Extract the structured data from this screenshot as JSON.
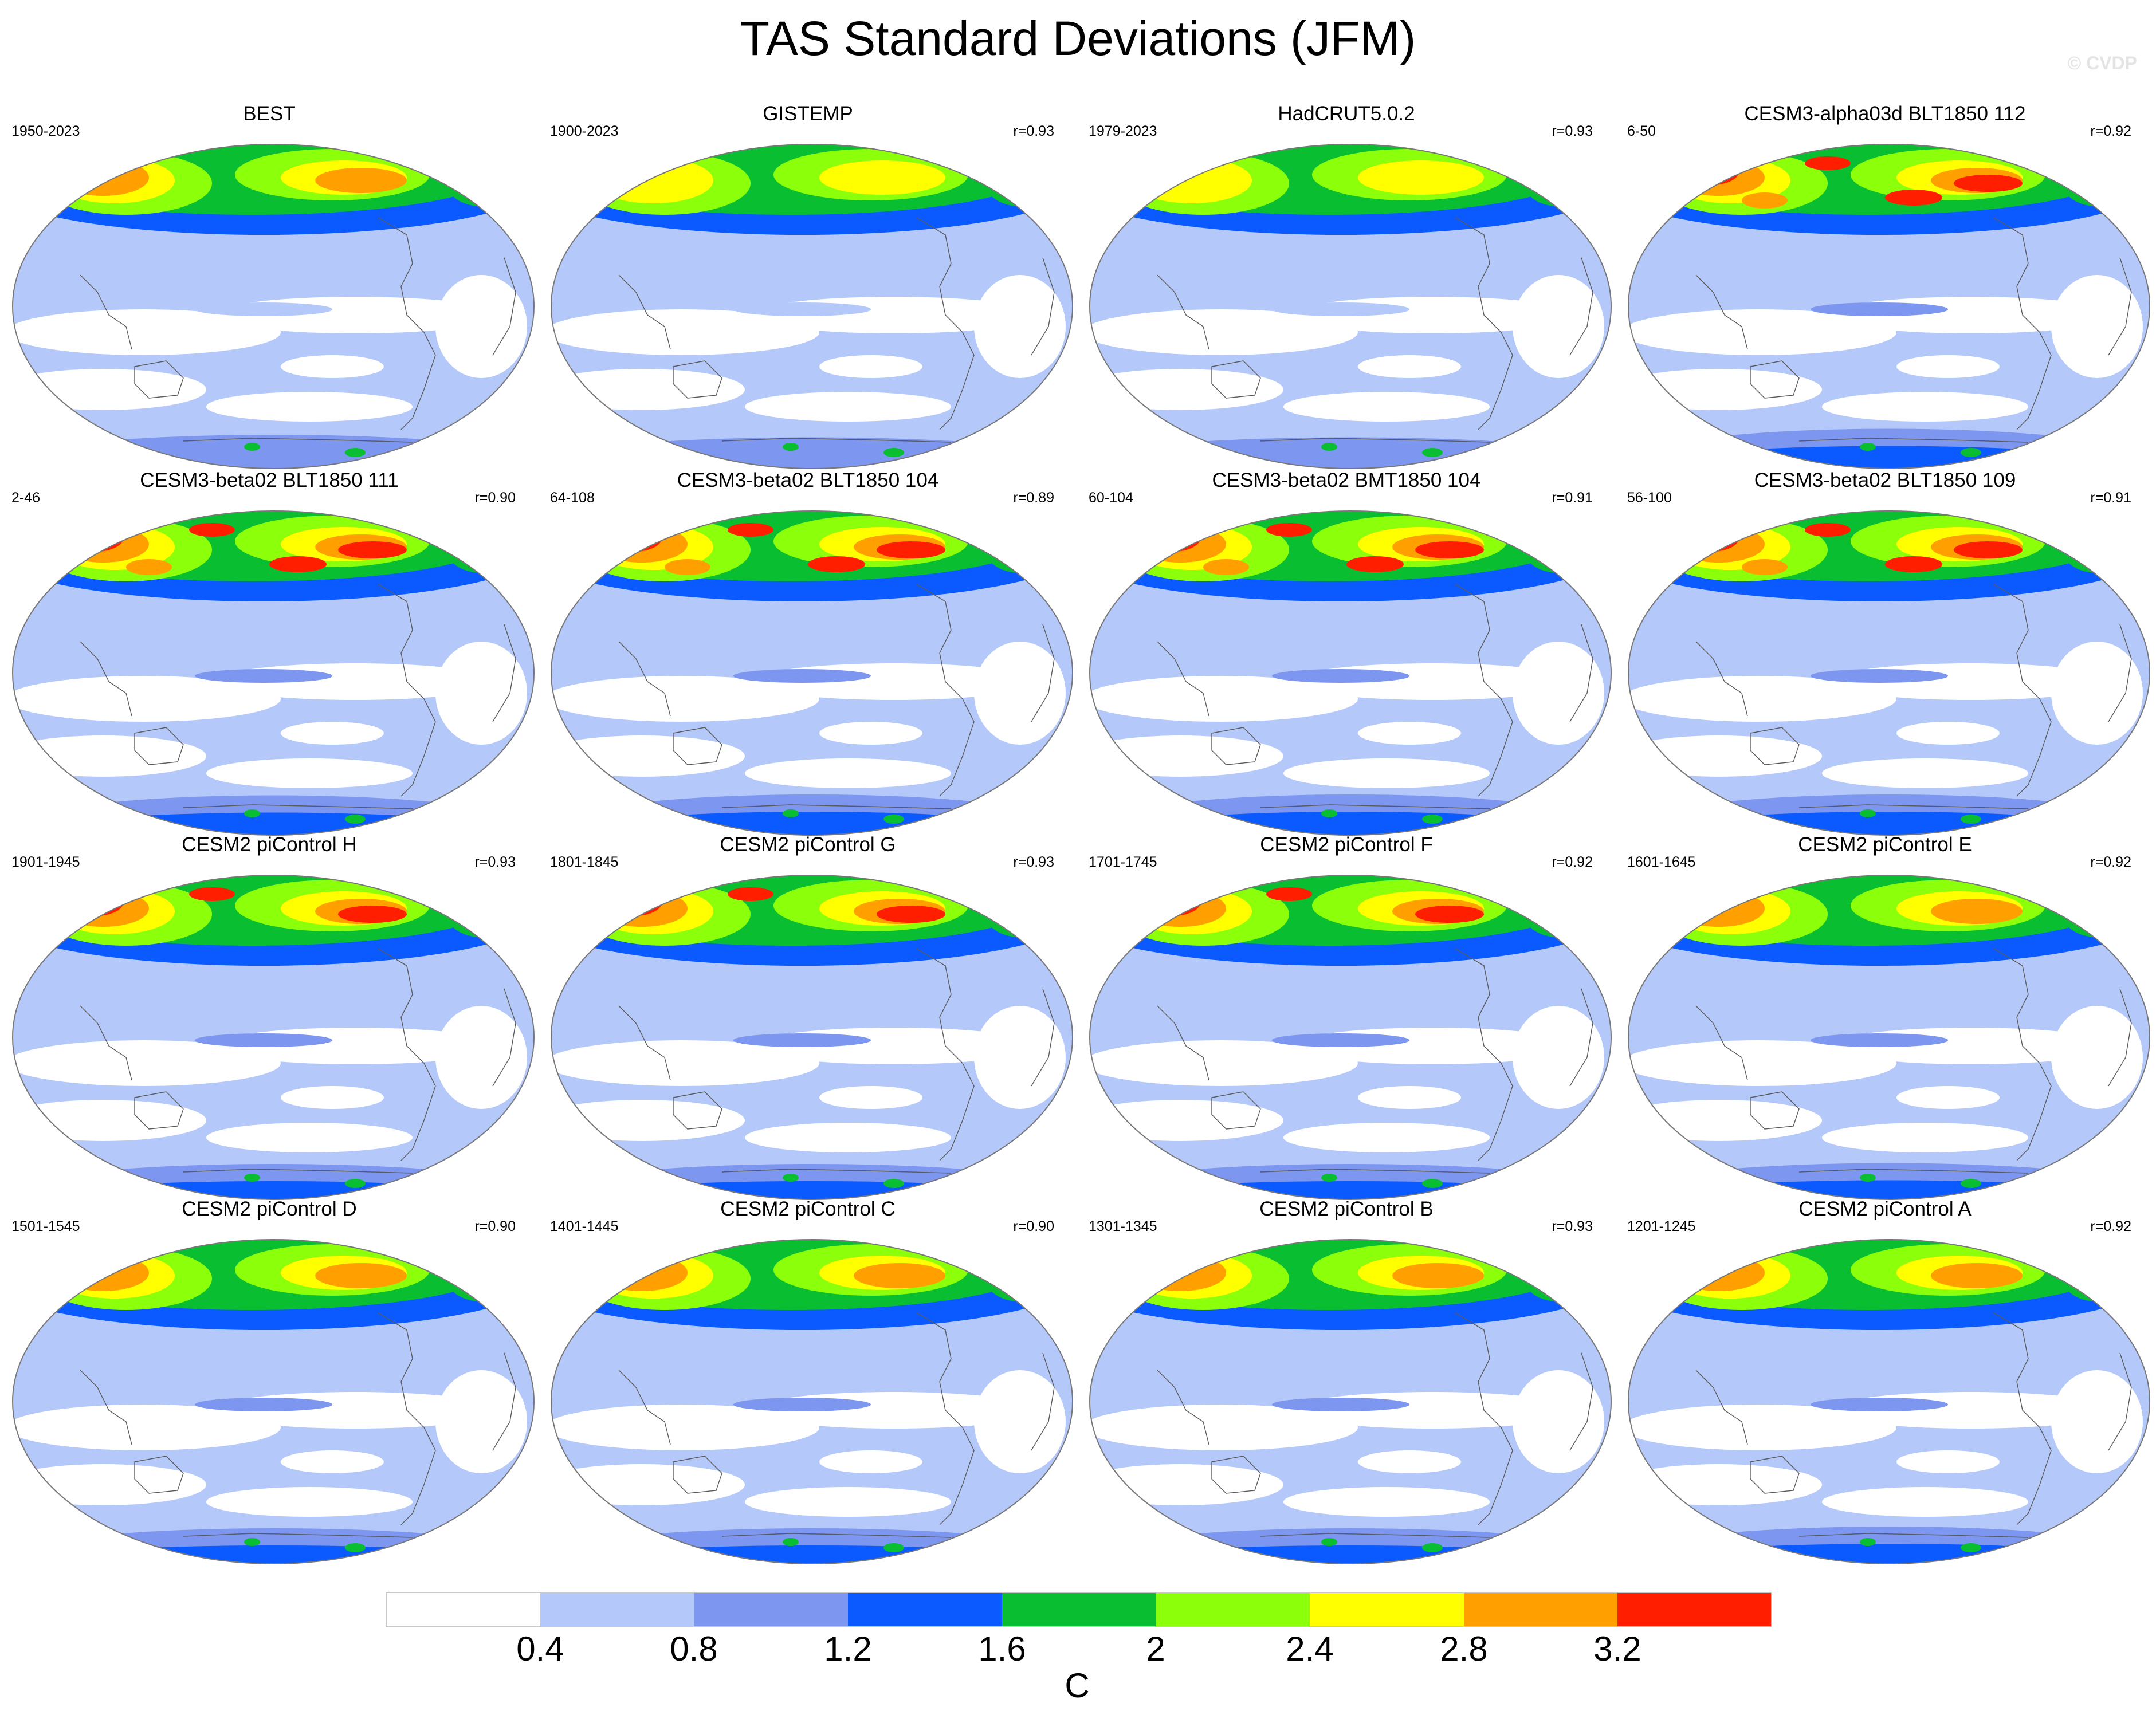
{
  "title": "TAS Standard Deviations (JFM)",
  "watermark": "© CVDP",
  "colors": {
    "levels": [
      "#ffffff",
      "#b4c8fa",
      "#7d96f0",
      "#0a5aff",
      "#0abe32",
      "#8cff0a",
      "#ffff00",
      "#ffa000",
      "#ff1e00"
    ],
    "coast": "#5a5a5a"
  },
  "colorbar": {
    "labels": [
      "0.4",
      "0.8",
      "1.2",
      "1.6",
      "2",
      "2.4",
      "2.8",
      "3.2"
    ],
    "unit": "C"
  },
  "panels": [
    {
      "title": "BEST",
      "years": "1950-2023",
      "corr": "",
      "intensity": 0.82,
      "south": 0.2
    },
    {
      "title": "GISTEMP",
      "years": "1900-2023",
      "corr": "r=0.93",
      "intensity": 0.7,
      "south": 0.05
    },
    {
      "title": "HadCRUT5.0.2",
      "years": "1979-2023",
      "corr": "r=0.93",
      "intensity": 0.72,
      "south": 0.05
    },
    {
      "title": "CESM3-alpha03d BLT1850 112",
      "years": "6-50",
      "corr": "r=0.92",
      "intensity": 1.0,
      "south": 0.55
    },
    {
      "title": "CESM3-beta02 BLT1850 111",
      "years": "2-46",
      "corr": "r=0.90",
      "intensity": 0.98,
      "south": 0.55
    },
    {
      "title": "CESM3-beta02 BLT1850 104",
      "years": "64-108",
      "corr": "r=0.89",
      "intensity": 0.98,
      "south": 0.6
    },
    {
      "title": "CESM3-beta02 BMT1850 104",
      "years": "60-104",
      "corr": "r=0.91",
      "intensity": 1.0,
      "south": 0.6
    },
    {
      "title": "CESM3-beta02 BLT1850 109",
      "years": "56-100",
      "corr": "r=0.91",
      "intensity": 0.98,
      "south": 0.6
    },
    {
      "title": "CESM2 piControl H",
      "years": "1901-1945",
      "corr": "r=0.93",
      "intensity": 0.93,
      "south": 0.3
    },
    {
      "title": "CESM2 piControl G",
      "years": "1801-1845",
      "corr": "r=0.93",
      "intensity": 0.93,
      "south": 0.3
    },
    {
      "title": "CESM2 piControl F",
      "years": "1701-1745",
      "corr": "r=0.92",
      "intensity": 0.93,
      "south": 0.3
    },
    {
      "title": "CESM2 piControl E",
      "years": "1601-1645",
      "corr": "r=0.92",
      "intensity": 0.9,
      "south": 0.35
    },
    {
      "title": "CESM2 piControl D",
      "years": "1501-1545",
      "corr": "r=0.90",
      "intensity": 0.88,
      "south": 0.3
    },
    {
      "title": "CESM2 piControl C",
      "years": "1401-1445",
      "corr": "r=0.90",
      "intensity": 0.9,
      "south": 0.3
    },
    {
      "title": "CESM2 piControl B",
      "years": "1301-1345",
      "corr": "r=0.93",
      "intensity": 0.9,
      "south": 0.3
    },
    {
      "title": "CESM2 piControl A",
      "years": "1201-1245",
      "corr": "r=0.92",
      "intensity": 0.9,
      "south": 0.4
    }
  ]
}
